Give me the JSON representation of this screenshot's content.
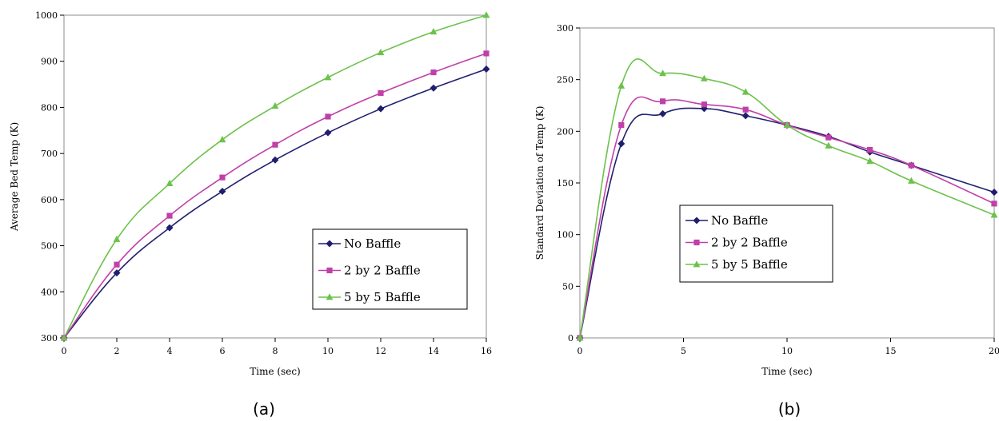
{
  "chart_data": [
    {
      "type": "line",
      "caption": "(a)",
      "xlabel": "Time (sec)",
      "ylabel": "Average Bed Temp (K)",
      "xlim": [
        0,
        16
      ],
      "ylim": [
        300,
        1000
      ],
      "xticks": [
        0,
        2,
        4,
        6,
        8,
        10,
        12,
        14,
        16
      ],
      "yticks": [
        300,
        400,
        500,
        600,
        700,
        800,
        900,
        1000
      ],
      "x": [
        0,
        2,
        4,
        6,
        8,
        10,
        12,
        14,
        16
      ],
      "grid": false,
      "legend_position": "bottom-right",
      "series": [
        {
          "name": "No Baffle",
          "color": "#1f1f6e",
          "marker": "diamond",
          "values": [
            300,
            441,
            539,
            618,
            686,
            745,
            797,
            842,
            883
          ]
        },
        {
          "name": "2 by 2 Baffle",
          "color": "#c040a8",
          "marker": "square",
          "values": [
            300,
            459,
            565,
            648,
            719,
            780,
            831,
            876,
            917
          ]
        },
        {
          "name": "5 by 5 Baffle",
          "color": "#6cc24a",
          "marker": "triangle",
          "values": [
            300,
            514,
            635,
            730,
            803,
            865,
            919,
            964,
            1000
          ]
        }
      ]
    },
    {
      "type": "line",
      "caption": "(b)",
      "xlabel": "Time (sec)",
      "ylabel": "Standard Deviation of Temp (K)",
      "xlim": [
        0,
        20
      ],
      "ylim": [
        0,
        300
      ],
      "xticks": [
        0,
        5,
        10,
        15,
        20
      ],
      "yticks": [
        0,
        50,
        100,
        150,
        200,
        250,
        300
      ],
      "x": [
        0,
        2,
        4,
        6,
        8,
        10,
        12,
        14,
        16,
        20
      ],
      "grid": false,
      "legend_position": "center-left",
      "series": [
        {
          "name": "No Baffle",
          "color": "#1f1f6e",
          "marker": "diamond",
          "values": [
            0,
            188,
            217,
            222,
            215,
            206,
            195,
            180,
            167,
            141
          ]
        },
        {
          "name": "2 by 2 Baffle",
          "color": "#c040a8",
          "marker": "square",
          "values": [
            0,
            206,
            229,
            226,
            221,
            206,
            194,
            182,
            167,
            130
          ]
        },
        {
          "name": "5 by 5 Baffle",
          "color": "#6cc24a",
          "marker": "triangle",
          "values": [
            0,
            244,
            256,
            251,
            238,
            206,
            186,
            171,
            152,
            119
          ]
        }
      ]
    }
  ]
}
